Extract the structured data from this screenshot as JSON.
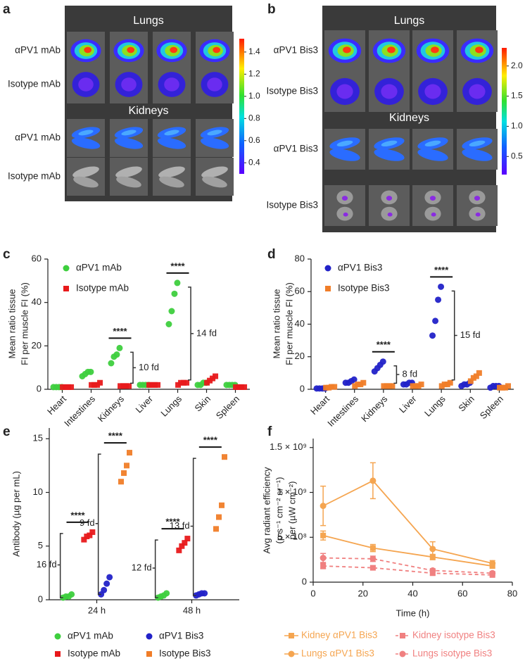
{
  "chart_data": [
    {
      "type": "image",
      "label": "a",
      "sections": [
        {
          "title": "Lungs",
          "rows": [
            "αPV1 mAb",
            "Isotype mAb"
          ]
        },
        {
          "title": "Kidneys",
          "rows": [
            "αPV1 mAb",
            "Isotype mAb"
          ]
        }
      ],
      "colorbar": {
        "ylim": [
          0.3,
          1.52
        ],
        "yticks": [
          0.4,
          0.6,
          0.8,
          {
            "value": 1,
            "label": "1.0"
          },
          1.2,
          1.4
        ]
      }
    },
    {
      "type": "image",
      "label": "b",
      "sections": [
        {
          "title": "Lungs",
          "rows": [
            "αPV1 Bis3",
            "Isotype Bis3"
          ]
        },
        {
          "title": "Kidneys",
          "rows": [
            "αPV1 Bis3",
            "Isotype Bis3"
          ]
        }
      ],
      "colorbar": {
        "ylim": [
          0.2,
          2.3
        ],
        "yticks": [
          0.5,
          {
            "value": 1,
            "label": "1.0"
          },
          1.5,
          {
            "value": 2,
            "label": "2.0"
          }
        ]
      }
    },
    {
      "type": "dot",
      "label": "c",
      "ylabel": [
        "Mean ratio tissue",
        "FI per muscle FI (%)"
      ],
      "categories": [
        "Heart",
        "Intestines",
        "Kidneys",
        "Liver",
        "Lungs",
        "Skin",
        "Spleen"
      ],
      "series": [
        {
          "name": "αPV1 mAb",
          "color": "#3ecf3e",
          "marker": "circle",
          "values": [
            [
              1,
              1,
              1,
              1
            ],
            [
              6,
              7,
              8,
              8
            ],
            [
              12,
              15,
              16,
              19
            ],
            [
              2,
              2,
              2,
              2
            ],
            [
              30,
              36,
              44,
              49
            ],
            [
              2,
              2,
              3,
              3
            ],
            [
              2,
              2,
              2,
              2
            ]
          ]
        },
        {
          "name": "Isotype mAb",
          "color": "#e8191b",
          "marker": "square",
          "values": [
            [
              1,
              1,
              1,
              1
            ],
            [
              2,
              2,
              2,
              3
            ],
            [
              1.5,
              1.5,
              1.5,
              1.5
            ],
            [
              2,
              2,
              2,
              2
            ],
            [
              2,
              3,
              3,
              3
            ],
            [
              3,
              4,
              5,
              6
            ],
            [
              1,
              1,
              1,
              1
            ]
          ]
        }
      ],
      "ylim": [
        0,
        60
      ],
      "yticks": [
        0,
        20,
        40,
        60
      ],
      "legend": "upper left",
      "annotations": [
        null,
        null,
        {
          "significance": "****",
          "fold_change": "10 fd"
        },
        null,
        {
          "significance": "****",
          "fold_change": "14 fd"
        },
        null,
        null
      ]
    },
    {
      "type": "dot",
      "label": "d",
      "ylabel": [
        "Mean ratio tissue",
        "FI per muscle FI (%)"
      ],
      "categories": [
        "Heart",
        "Intestines",
        "Kidneys",
        "Liver",
        "Lungs",
        "Skin",
        "Spleen"
      ],
      "series": [
        {
          "name": "αPV1 Bis3",
          "color": "#2222c8",
          "marker": "circle",
          "values": [
            [
              0.5,
              0.5,
              0.5,
              0.5
            ],
            [
              4,
              4,
              5,
              6
            ],
            [
              11,
              13,
              15,
              17
            ],
            [
              3,
              3,
              4,
              4
            ],
            [
              33,
              42,
              55,
              63
            ],
            [
              2,
              3,
              3,
              4
            ],
            [
              1,
              2,
              2,
              2
            ]
          ]
        },
        {
          "name": "Isotype Bis3",
          "color": "#f07d28",
          "marker": "square",
          "values": [
            [
              1,
              1,
              1.5,
              1.5
            ],
            [
              2,
              3,
              3,
              4
            ],
            [
              2,
              2,
              2,
              2
            ],
            [
              2,
              2,
              2,
              3
            ],
            [
              2,
              3,
              3,
              4
            ],
            [
              5,
              7,
              8,
              10
            ],
            [
              1,
              1,
              1,
              2
            ]
          ]
        }
      ],
      "ylim": [
        0,
        80
      ],
      "yticks": [
        0,
        20,
        40,
        60,
        80
      ],
      "legend": "upper left",
      "annotations": [
        null,
        null,
        {
          "significance": "****",
          "fold_change": "8 fd"
        },
        null,
        {
          "significance": "****",
          "fold_change": "15 fd"
        },
        null,
        null
      ]
    },
    {
      "type": "dot",
      "label": "e",
      "ylabel": [
        "Antibody (µg per mL)"
      ],
      "categories": [
        "24 h",
        "48 h"
      ],
      "series": [
        {
          "name": "αPV1 mAb",
          "color": "#3ecf3e",
          "marker": "circle",
          "values": [
            [
              0.2,
              0.3,
              0.3,
              0.5
            ],
            [
              0.2,
              0.3,
              0.4,
              0.6
            ]
          ]
        },
        {
          "name": "Isotype mAb",
          "color": "#e8191b",
          "marker": "square",
          "values": [
            [
              5.6,
              5.9,
              6,
              6.3
            ],
            [
              4.6,
              5,
              5.3,
              5.7
            ]
          ]
        },
        {
          "name": "αPV1 Bis3",
          "color": "#2222c8",
          "marker": "circle",
          "values": [
            [
              0.5,
              0.9,
              1.5,
              2.1
            ],
            [
              0.4,
              0.5,
              0.6,
              0.6
            ]
          ]
        },
        {
          "name": "Isotype Bis3",
          "color": "#f07d28",
          "marker": "square",
          "values": [
            [
              11,
              11.8,
              12.5,
              13.7
            ],
            [
              6.6,
              7.7,
              8.8,
              13.3
            ]
          ]
        }
      ],
      "ylim": [
        0,
        16
      ],
      "yticks": [
        0,
        5,
        10,
        15
      ],
      "legend": "bottom",
      "annotations": [
        {
          "significance": [
            "****",
            "****"
          ],
          "fold_change": [
            "16 fd",
            "9 fd"
          ]
        },
        {
          "significance": [
            "****",
            "****"
          ],
          "fold_change": [
            "12 fd",
            "13 fd"
          ]
        }
      ]
    },
    {
      "type": "line",
      "label": "f",
      "ylabel": [
        "Avg radiant efficiency",
        "(p s⁻¹ cm⁻² sr⁻¹)",
        "per (µW cm⁻²)"
      ],
      "xlabel": "Time (h)",
      "x": [
        4,
        24,
        48,
        72
      ],
      "series": [
        {
          "name": "Kidney αPV1 Bis3",
          "color": "#f5a550",
          "marker": "square",
          "linestyle": "solid",
          "values": [
            520000000,
            380000000,
            280000000,
            180000000
          ],
          "errors": [
            50000000,
            40000000,
            30000000,
            20000000
          ]
        },
        {
          "name": "Lungs αPV1 Bis3",
          "color": "#f5a550",
          "marker": "circle",
          "linestyle": "solid",
          "values": [
            850000000,
            1130000000,
            370000000,
            210000000
          ],
          "errors": [
            220000000,
            200000000,
            80000000,
            30000000
          ]
        },
        {
          "name": "Kidney isotype Bis3",
          "color": "#f08080",
          "marker": "square",
          "linestyle": "dashed",
          "values": [
            180000000,
            160000000,
            100000000,
            80000000
          ],
          "errors": [
            30000000,
            20000000,
            20000000,
            10000000
          ]
        },
        {
          "name": "Lungs isotype Bis3",
          "color": "#f08080",
          "marker": "circle",
          "linestyle": "dashed",
          "values": [
            270000000,
            260000000,
            130000000,
            100000000
          ],
          "errors": [
            50000000,
            30000000,
            20000000,
            20000000
          ]
        }
      ],
      "xlim": [
        0,
        80
      ],
      "xticks": [
        0,
        20,
        40,
        60,
        80
      ],
      "ylim": [
        0,
        1600000000
      ],
      "yticks": [
        0,
        {
          "value": 500000000,
          "label": "5 × 10⁸"
        },
        {
          "value": 1000000000,
          "label": "1 × 10⁹"
        },
        {
          "value": 1500000000,
          "label": "1.5 × 10⁹"
        }
      ],
      "legend": "bottom"
    }
  ]
}
